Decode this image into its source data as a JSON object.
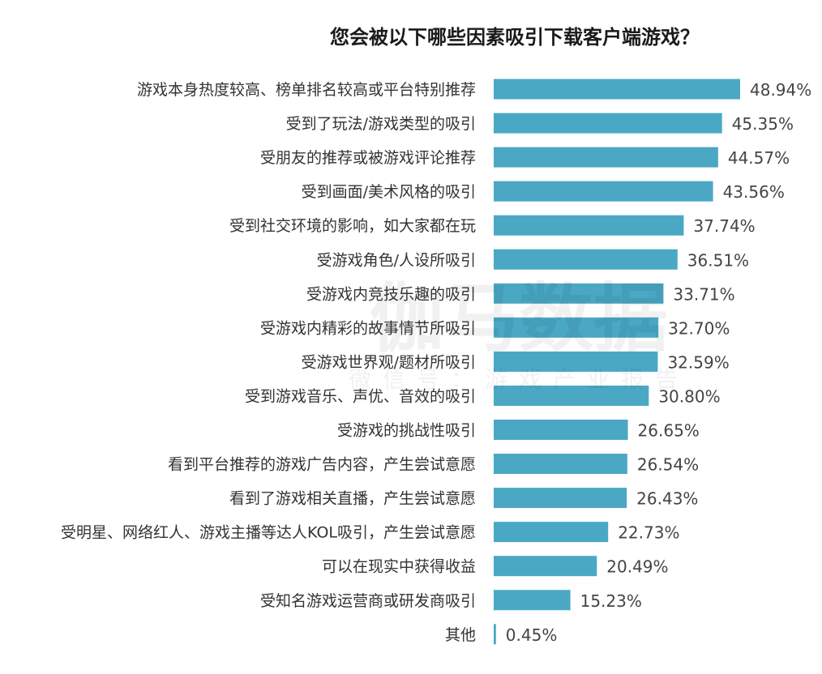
{
  "chart_data": {
    "type": "bar",
    "orientation": "horizontal",
    "title": "您会被以下哪些因素吸引下载客户端游戏？",
    "categories": [
      "游戏本身热度较高、榜单排名较高或平台特别推荐",
      "受到了玩法/游戏类型的吸引",
      "受朋友的推荐或被游戏评论推荐",
      "受到画面/美术风格的吸引",
      "受到社交环境的影响，如大家都在玩",
      "受游戏角色/人设所吸引",
      "受游戏内竞技乐趣的吸引",
      "受游戏内精彩的故事情节所吸引",
      "受游戏世界观/题材所吸引",
      "受到游戏音乐、声优、音效的吸引",
      "受游戏的挑战性吸引",
      "看到平台推荐的游戏广告内容，产生尝试意愿",
      "看到了游戏相关直播，产生尝试意愿",
      "受明星、网络红人、游戏主播等达人KOL吸引，产生尝试意愿",
      "可以在现实中获得收益",
      "受知名游戏运营商或研发商吸引",
      "其他"
    ],
    "values": [
      48.94,
      45.35,
      44.57,
      43.56,
      37.74,
      36.51,
      33.71,
      32.7,
      32.59,
      30.8,
      26.65,
      26.54,
      26.43,
      22.73,
      20.49,
      15.23,
      0.45
    ],
    "value_labels": [
      "48.94%",
      "45.35%",
      "44.57%",
      "43.56%",
      "37.74%",
      "36.51%",
      "33.71%",
      "32.70%",
      "32.59%",
      "30.80%",
      "26.65%",
      "26.54%",
      "26.43%",
      "22.73%",
      "20.49%",
      "15.23%",
      "0.45%"
    ],
    "xlim": [
      0,
      48.94
    ],
    "grid": false,
    "legend": "none",
    "bar_color": "#4aa8c4"
  },
  "watermark": {
    "main": "伽马数据",
    "sub": "微信号：游戏产业报告"
  }
}
